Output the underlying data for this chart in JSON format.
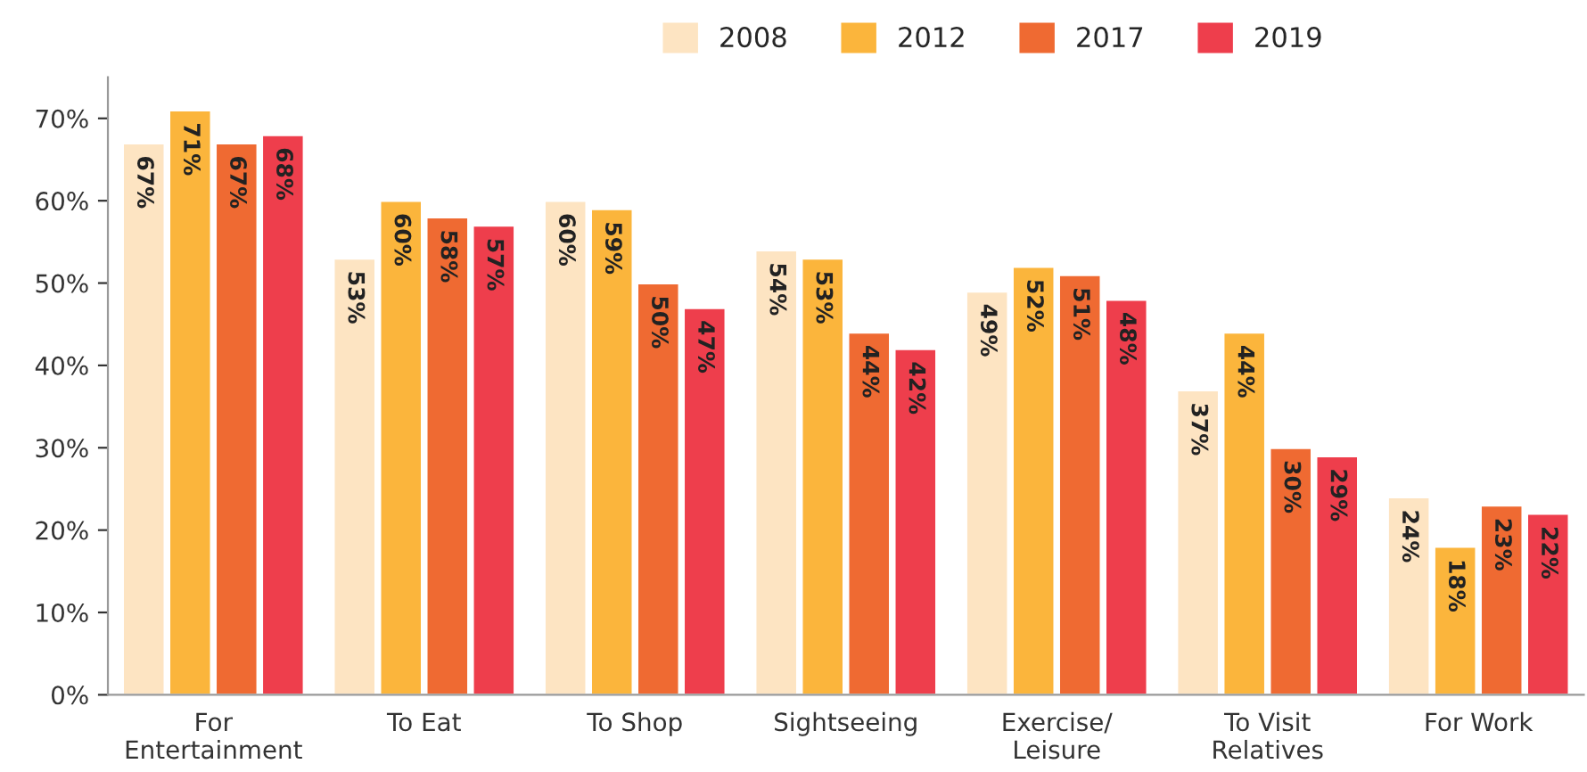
{
  "chart_data": {
    "type": "bar",
    "categories": [
      "For\nEntertainment",
      "To Eat",
      "To Shop",
      "Sightseeing",
      "Exercise/\nLeisure",
      "To Visit\nRelatives",
      "For Work"
    ],
    "series": [
      {
        "name": "2008",
        "color": "#fde4c2",
        "values": [
          67,
          53,
          60,
          54,
          49,
          37,
          24
        ],
        "value_labels": [
          "67%",
          "53%",
          "60%",
          "54%",
          "49%",
          "37%",
          "24%"
        ]
      },
      {
        "name": "2012",
        "color": "#fbb53c",
        "values": [
          71,
          60,
          59,
          53,
          52,
          44,
          18
        ],
        "value_labels": [
          "71%",
          "60%",
          "59%",
          "53%",
          "52%",
          "44%",
          "18%"
        ]
      },
      {
        "name": "2017",
        "color": "#ef6a32",
        "values": [
          67,
          58,
          50,
          44,
          51,
          30,
          23
        ],
        "value_labels": [
          "67%",
          "58%",
          "50%",
          "44%",
          "51%",
          "30%",
          "23%"
        ]
      },
      {
        "name": "2019",
        "color": "#ee3e4c",
        "values": [
          68,
          57,
          47,
          42,
          48,
          29,
          22
        ],
        "value_labels": [
          "68%",
          "57%",
          "47%",
          "42%",
          "48%",
          "29%",
          "22%"
        ]
      }
    ],
    "ylim": [
      0,
      75
    ],
    "yticks": [
      {
        "value": 0,
        "label": "0%"
      },
      {
        "value": 10,
        "label": "10%"
      },
      {
        "value": 20,
        "label": "20%"
      },
      {
        "value": 30,
        "label": "30%"
      },
      {
        "value": 40,
        "label": "40%"
      },
      {
        "value": 50,
        "label": "50%"
      },
      {
        "value": 60,
        "label": "60%"
      },
      {
        "value": 70,
        "label": "70%"
      }
    ],
    "grid": false,
    "legend": "top"
  }
}
